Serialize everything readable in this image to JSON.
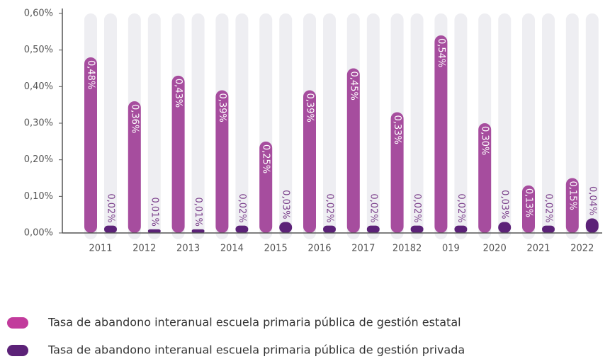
{
  "chart_data": {
    "type": "bar",
    "categories": [
      "2011",
      "2012",
      "2013",
      "2014",
      "2015",
      "2016",
      "2017",
      "20182",
      "019",
      "2020",
      "2021",
      "2022"
    ],
    "series": [
      {
        "name": "Tasa de abandono interanual escuela primaria pública de gestión estatal",
        "color": "#a64d9e",
        "values": [
          0.48,
          0.36,
          0.43,
          0.39,
          0.25,
          0.39,
          0.45,
          0.33,
          0.54,
          0.3,
          0.13,
          0.15
        ],
        "value_labels": [
          "0,48%",
          "0,36%",
          "0,43%",
          "0,39%",
          "0,25%",
          "0,39%",
          "0,45%",
          "0,33%",
          "0,54%",
          "0,30%",
          "0,13%",
          "0,15%"
        ]
      },
      {
        "name": "Tasa de abandono interanual escuela primaria pública de gestión privada",
        "color": "#5c2278",
        "values": [
          0.02,
          0.01,
          0.01,
          0.02,
          0.03,
          0.02,
          0.02,
          0.02,
          0.02,
          0.03,
          0.02,
          0.04
        ],
        "value_labels": [
          "0,02%",
          "0,01%",
          "0,01%",
          "0,02%",
          "0,03%",
          "0,02%",
          "0,02%",
          "0,02%",
          "0,02%",
          "0,03%",
          "0,02%",
          "0,04%"
        ]
      }
    ],
    "ylim": [
      0,
      0.6
    ],
    "yticks": [
      {
        "value": 0,
        "label": "0,00%"
      },
      {
        "value": 0.1,
        "label": "0,10%"
      },
      {
        "value": 0.2,
        "label": "0,20%"
      },
      {
        "value": 0.3,
        "label": "0,30%"
      },
      {
        "value": 0.4,
        "label": "0,40%"
      },
      {
        "value": 0.5,
        "label": "0,50%"
      },
      {
        "value": 0.6,
        "label": "0,60%"
      }
    ]
  }
}
